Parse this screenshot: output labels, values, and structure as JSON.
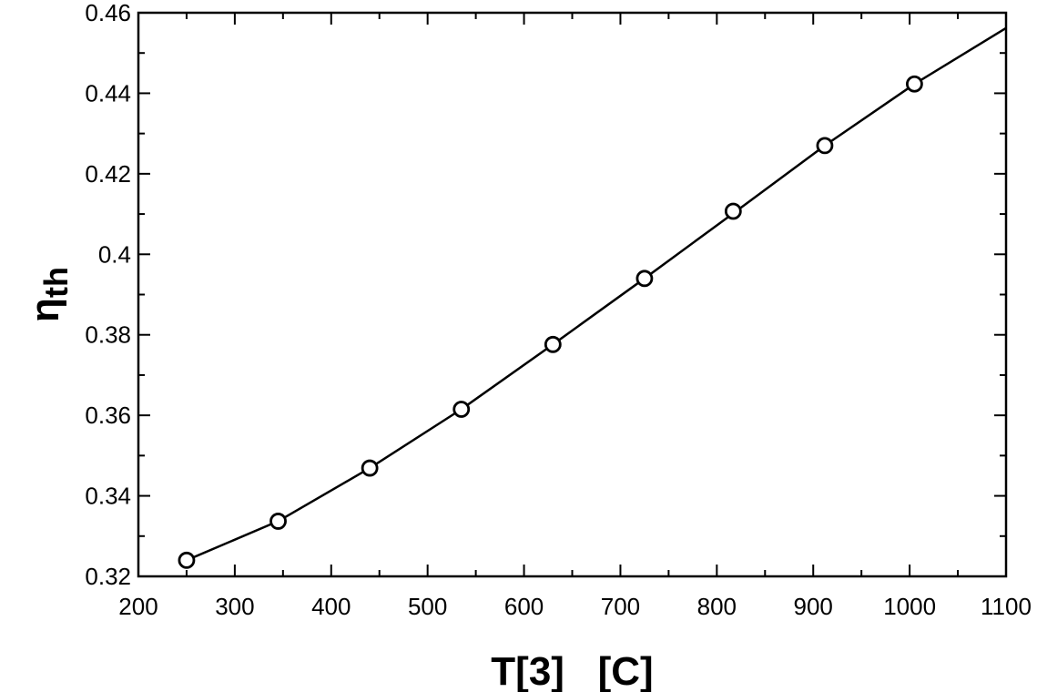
{
  "chart_data": {
    "type": "line",
    "title": "",
    "xlabel": "T[3]   [C]",
    "ylabel": "ηth",
    "ylabel_main": "η",
    "ylabel_sub": "th",
    "xlim": [
      200,
      1100
    ],
    "ylim": [
      0.32,
      0.46
    ],
    "x_ticks": [
      200,
      300,
      400,
      500,
      600,
      700,
      800,
      900,
      1000,
      1100
    ],
    "x_tick_labels": [
      "200",
      "300",
      "400",
      "500",
      "600",
      "700",
      "800",
      "900",
      "1000",
      "1100"
    ],
    "y_ticks": [
      0.32,
      0.34,
      0.36,
      0.38,
      0.4,
      0.42,
      0.44,
      0.46
    ],
    "y_tick_labels": [
      "0.32",
      "0.34",
      "0.36",
      "0.38",
      "0.4",
      "0.42",
      "0.44",
      "0.46"
    ],
    "grid": false,
    "legend": "none",
    "series": [
      {
        "line_color": "#000000",
        "marker": "open-circle",
        "curve_x": [
          250,
          345,
          440,
          535,
          630,
          725,
          820,
          912,
          1005,
          1100
        ],
        "curve_y": [
          0.324,
          0.3337,
          0.3469,
          0.3615,
          0.3776,
          0.394,
          0.4107,
          0.427,
          0.4423,
          0.4562
        ],
        "marker_x": [
          250,
          345,
          440,
          535,
          630,
          725,
          817,
          912,
          1005
        ],
        "marker_y": [
          0.324,
          0.3337,
          0.3469,
          0.3615,
          0.3776,
          0.394,
          0.4107,
          0.427,
          0.4423
        ]
      }
    ]
  }
}
